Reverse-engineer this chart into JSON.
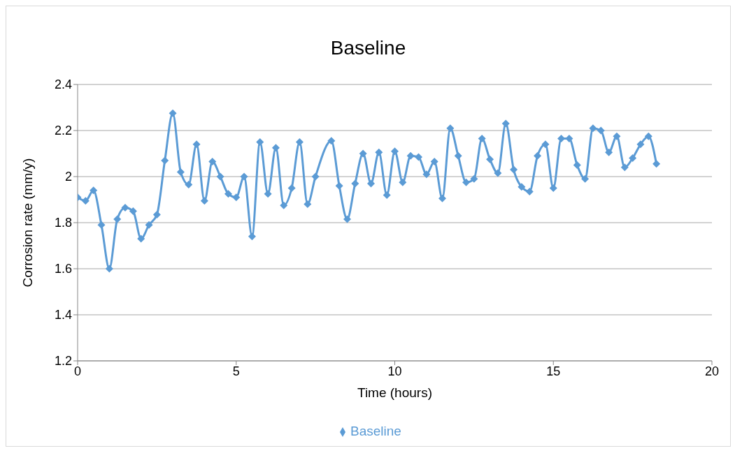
{
  "chart_data": {
    "type": "line",
    "title": "Baseline",
    "xlabel": "Time (hours)",
    "ylabel": "Corrosion rate (mm/y)",
    "x": [
      0,
      0.25,
      0.5,
      0.75,
      1,
      1.25,
      1.5,
      1.75,
      2,
      2.25,
      2.5,
      2.75,
      3,
      3.25,
      3.5,
      3.75,
      4,
      4.25,
      4.5,
      4.75,
      5,
      5.25,
      5.5,
      5.75,
      6,
      6.25,
      6.5,
      6.75,
      7,
      7.25,
      7.5,
      8,
      8.25,
      8.5,
      8.75,
      9,
      9.25,
      9.5,
      9.75,
      10,
      10.25,
      10.5,
      10.75,
      11,
      11.25,
      11.5,
      11.75,
      12,
      12.25,
      12.5,
      12.75,
      13,
      13.25,
      13.5,
      13.75,
      14,
      14.25,
      14.5,
      14.75,
      15,
      15.25,
      15.5,
      15.75,
      16,
      16.25,
      16.5,
      16.75,
      17,
      17.25,
      17.5,
      17.75,
      18,
      18.25
    ],
    "series": [
      {
        "name": "Baseline",
        "color": "#5b9bd5",
        "values": [
          1.91,
          1.895,
          1.94,
          1.79,
          1.6,
          1.815,
          1.865,
          1.85,
          1.73,
          1.79,
          1.835,
          2.07,
          2.275,
          2.02,
          1.965,
          2.14,
          1.895,
          2.065,
          2.0,
          1.925,
          1.91,
          2.0,
          1.74,
          2.15,
          1.925,
          2.125,
          1.875,
          1.95,
          2.15,
          1.88,
          2.0,
          2.155,
          1.96,
          1.815,
          1.97,
          2.1,
          1.97,
          2.105,
          1.92,
          2.11,
          1.975,
          2.09,
          2.085,
          2.01,
          2.065,
          1.905,
          2.21,
          2.09,
          1.975,
          1.99,
          2.165,
          2.075,
          2.015,
          2.23,
          2.03,
          1.955,
          1.935,
          2.09,
          2.14,
          1.95,
          2.165,
          2.165,
          2.05,
          1.99,
          2.21,
          2.2,
          2.105,
          2.175,
          2.04,
          2.08,
          2.14,
          2.175,
          2.055
        ]
      }
    ],
    "xlim": [
      0,
      20
    ],
    "xticks": [
      0,
      5,
      10,
      15,
      20
    ],
    "ylim": [
      1.2,
      2.4
    ],
    "yticks": [
      1.2,
      1.4,
      1.6,
      1.8,
      2,
      2.2,
      2.4
    ],
    "grid": "y",
    "legend": "bottom",
    "marker": "diamond",
    "line_style": "solid"
  }
}
